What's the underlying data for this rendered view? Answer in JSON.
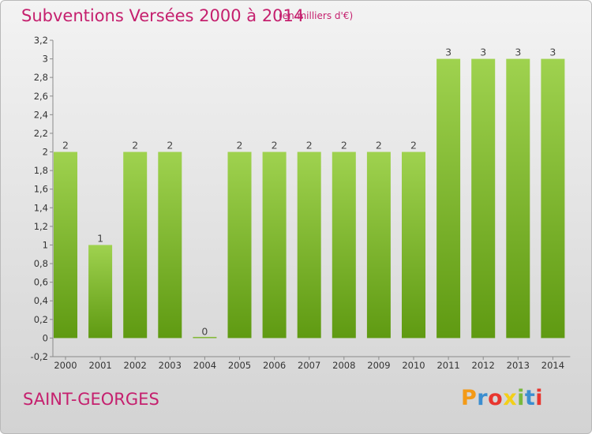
{
  "title": "Subventions Versées 2000 à 2014",
  "unit_note": "(en milliers d'€)",
  "commune": "SAINT-GEORGES",
  "logo": {
    "text": "Proxiti",
    "colors": [
      "#f39a17",
      "#3b8ed0",
      "#e8362f",
      "#f3cf18",
      "#79b93d",
      "#3b8ed0",
      "#e8362f"
    ]
  },
  "colors": {
    "bar_top": "#9fd24f",
    "bar_bottom": "#5f9a12",
    "title": "#c5206e"
  },
  "chart_data": {
    "type": "bar",
    "categories": [
      "2000",
      "2001",
      "2002",
      "2003",
      "2004",
      "2005",
      "2006",
      "2007",
      "2008",
      "2009",
      "2010",
      "2011",
      "2012",
      "2013",
      "2014"
    ],
    "values": [
      2,
      1,
      2,
      2,
      0,
      2,
      2,
      2,
      2,
      2,
      2,
      3,
      3,
      3,
      3
    ],
    "data_labels": [
      "2",
      "1",
      "2",
      "2",
      "0",
      "2",
      "2",
      "2",
      "2",
      "2",
      "2",
      "3",
      "3",
      "3",
      "3"
    ],
    "yticks": [
      "-0,2",
      "0",
      "0,2",
      "0,4",
      "0,6",
      "0,8",
      "1",
      "1,2",
      "1,4",
      "1,6",
      "1,8",
      "2",
      "2,2",
      "2,4",
      "2,6",
      "2,8",
      "3",
      "3,2"
    ],
    "ylim": [
      -0.2,
      3.2
    ],
    "grid": false
  }
}
